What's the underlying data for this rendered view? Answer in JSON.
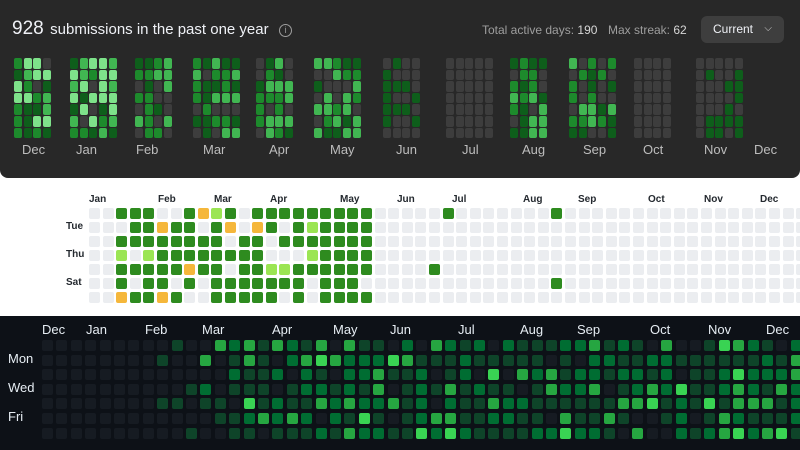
{
  "panel1": {
    "count": "928",
    "label": "submissions in the past one year",
    "info_icon": "i",
    "total_active_label": "Total active days: ",
    "total_active_value": "190",
    "max_streak_label": "Max streak: ",
    "max_streak_value": "62",
    "select_value": "Current",
    "months": [
      "Dec",
      "Jan",
      "Feb",
      "Mar",
      "Apr",
      "May",
      "Jun",
      "Jul",
      "Aug",
      "Sep",
      "Oct",
      "Nov",
      "Dec"
    ],
    "colors": [
      "#3d3d3d",
      "#0e5e1b",
      "#1d8a2c",
      "#41b652",
      "#7ee28a"
    ]
  },
  "panel2": {
    "months": [
      "Jan",
      "Feb",
      "Mar",
      "Apr",
      "May",
      "Jun",
      "Jul",
      "Aug",
      "Sep",
      "Oct",
      "Nov",
      "Dec"
    ],
    "days": [
      "Tue",
      "Thu",
      "Sat"
    ],
    "colors": [
      "#ebedf0",
      "#2e8b1f",
      "#9be553",
      "#f5b73b"
    ]
  },
  "panel3": {
    "months": [
      "Dec",
      "Jan",
      "Feb",
      "Mar",
      "Apr",
      "May",
      "Jun",
      "Jul",
      "Aug",
      "Sep",
      "Oct",
      "Nov",
      "Dec"
    ],
    "days": [
      "Mon",
      "Wed",
      "Fri"
    ],
    "colors": [
      "#161b22",
      "#0e4429",
      "#006d32",
      "#26a641",
      "#39d353"
    ]
  }
}
